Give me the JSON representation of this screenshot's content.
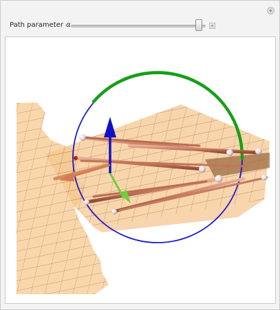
{
  "controls": {
    "slider_label": "Path parameter",
    "slider_symbol": "α",
    "slider_value": 0.95
  },
  "colors": {
    "surface": "#f9cd94",
    "surface_grid": "#3a2a1e",
    "circle": "#1a1acc",
    "arc": "#16a016",
    "arrow_up": "#1010c8",
    "arrow_green": "#6ecf3a",
    "rod": "#c87a5f"
  },
  "icons": {
    "corner": "plus-circle-icon",
    "stepper": "plus-box-icon"
  }
}
